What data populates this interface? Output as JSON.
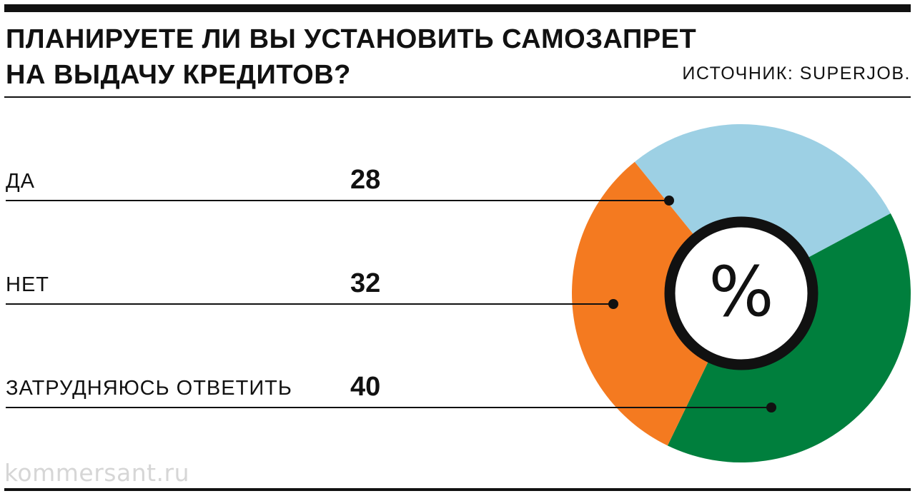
{
  "header": {
    "title_line1": "ПЛАНИРУЕТЕ ЛИ ВЫ УСТАНОВИТЬ САМОЗАПРЕТ",
    "title_line2": "НА ВЫДАЧУ КРЕДИТОВ?",
    "source": "ИСТОЧНИК: SUPERJOB."
  },
  "center_symbol": "%",
  "watermark": "kommersant.ru",
  "colors": {
    "yes": "#9dd0e4",
    "no": "#f47a20",
    "unsure": "#007f3d",
    "text": "#111111",
    "watermark": "#d6d6d6"
  },
  "chart_data": {
    "type": "pie",
    "title": "ПЛАНИРУЕТЕ ЛИ ВЫ УСТАНОВИТЬ САМОЗАПРЕТ НА ВЫДАЧУ КРЕДИТОВ?",
    "unit": "%",
    "categories": [
      "ДА",
      "НЕТ",
      "ЗАТРУДНЯЮСЬ ОТВЕТИТЬ"
    ],
    "values": [
      28,
      32,
      40
    ],
    "slices": [
      {
        "label": "ДА",
        "value": 28,
        "color": "#9dd0e4"
      },
      {
        "label": "НЕТ",
        "value": 32,
        "color": "#f47a20"
      },
      {
        "label": "ЗАТРУДНЯЮСЬ ОТВЕТИТЬ",
        "value": 40,
        "color": "#007f3d"
      }
    ]
  }
}
